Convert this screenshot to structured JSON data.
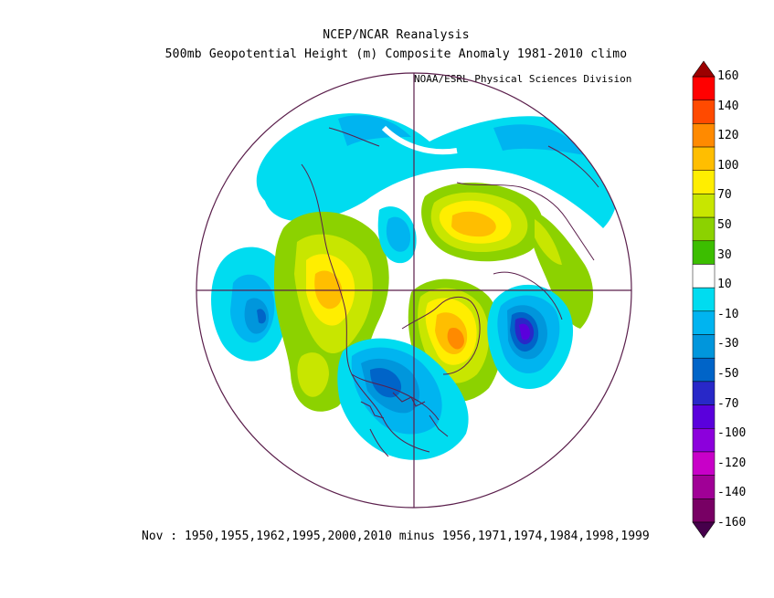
{
  "header": {
    "title": "NCEP/NCAR Reanalysis",
    "subtitle": "500mb Geopotential Height (m) Composite Anomaly 1981-2010 climo",
    "credit": "NOAA/ESRL Physical Sciences Division"
  },
  "caption": "Nov : 1950,1955,1962,1995,2000,2010 minus 1956,1971,1974,1984,1998,1999",
  "colorbar": {
    "labels": [
      "160",
      "140",
      "120",
      "100",
      "70",
      "50",
      "30",
      "10",
      "-10",
      "-30",
      "-50",
      "-70",
      "-100",
      "-120",
      "-140",
      "-160"
    ],
    "colors": [
      "#9b0000",
      "#ff0000",
      "#ff4a00",
      "#ff8a00",
      "#ffbe00",
      "#ffee00",
      "#c8e600",
      "#8cd200",
      "#3cbe00",
      "#ffffff",
      "#00dcf0",
      "#00b4f0",
      "#0096dc",
      "#0064c8",
      "#2828c8",
      "#5a00dc",
      "#8c00dc",
      "#c800c8",
      "#a00096",
      "#780064",
      "#46004b"
    ]
  },
  "colors": {
    "outline": "#5a1e4b",
    "accent": "#000000"
  }
}
